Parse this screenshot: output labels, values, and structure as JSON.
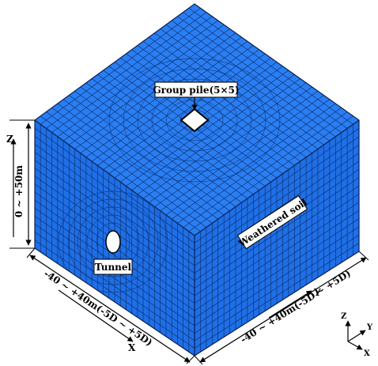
{
  "labels": {
    "group_pile": "Group pile(5×5)",
    "weathered_soil": "Weathered soil",
    "tunnel": "Tunnel",
    "height_range": "0 ~ +50m",
    "x_range": "-40 ~ +40m(-5D ~ +5D)",
    "y_range": "-40 ~ +40m(-5D ~ +5D)",
    "axis_x": "X",
    "axis_y": "Y",
    "axis_z": "Z"
  },
  "triad": {
    "x": "X",
    "y": "Y",
    "z": "Z"
  },
  "colors": {
    "mesh_fill": "#1f6fe6",
    "mesh_top": "#2a7ef2",
    "mesh_lines": "#0b2a66"
  },
  "mesh": {
    "grid_divisions": 28
  }
}
